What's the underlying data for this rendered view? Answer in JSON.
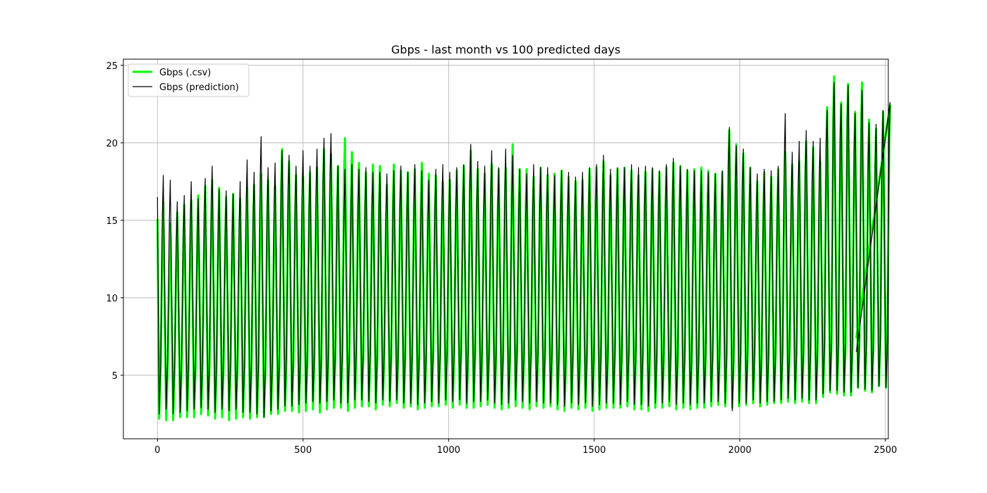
{
  "chart_data": {
    "type": "line",
    "title": "Gbps - last month vs 100 predicted days",
    "xlabel": "",
    "ylabel": "",
    "xlim": [
      -117,
      2510
    ],
    "ylim": [
      0.9,
      25.4
    ],
    "xticks": [
      0,
      500,
      1000,
      1500,
      2000,
      2500
    ],
    "yticks": [
      5,
      10,
      15,
      20,
      25
    ],
    "grid": true,
    "legend_position": "upper-left",
    "period": 24,
    "series": [
      {
        "name": "Gbps (.csv)",
        "color": "#00ff00",
        "style": "thick",
        "x_start": 0,
        "x_end": 2400,
        "start_value": 15.1,
        "end_value": 7.4,
        "daily_peaks": [
          16.2,
          14.8,
          15.5,
          16.0,
          16.3,
          16.6,
          17.2,
          17.6,
          17.1,
          16.5,
          16.7,
          16.4,
          17.1,
          17.3,
          18.0,
          17.6,
          17.2,
          19.6,
          18.8,
          17.9,
          17.8,
          18.1,
          18.4,
          19.6,
          19.3,
          18.5,
          20.3,
          19.4,
          18.7,
          18.1,
          18.6,
          18.5,
          17.3,
          18.6,
          18.2,
          18.1,
          18.3,
          18.7,
          18.0,
          17.9,
          17.5,
          17.6,
          18.2,
          18.5,
          19.5,
          18.3,
          18.0,
          18.6,
          18.3,
          18.4,
          19.9,
          18.3,
          18.3,
          17.8,
          18.4,
          17.9,
          18.0,
          18.2,
          17.8,
          17.5,
          17.6,
          18.3,
          18.4,
          18.8,
          17.9,
          18.3,
          18.4,
          18.2,
          17.9,
          18.1,
          18.3,
          18.1,
          18.4,
          18.7,
          18.5,
          18.2,
          18.3,
          18.4,
          18.2,
          18.0,
          18.1,
          20.8,
          19.9,
          19.3,
          18.4,
          17.5,
          18.1,
          17.8,
          18.3,
          19.4,
          18.6,
          18.8,
          20.1,
          19.7,
          18.8,
          22.3,
          24.3,
          22.6,
          23.8,
          22.0,
          23.9,
          21.5,
          20.9,
          22.0,
          22.4
        ],
        "daily_troughs": [
          2.2,
          2.1,
          2.1,
          2.3,
          2.3,
          2.3,
          2.5,
          2.4,
          2.2,
          2.3,
          2.1,
          2.2,
          2.3,
          2.2,
          2.3,
          2.3,
          2.5,
          2.5,
          2.7,
          2.7,
          2.6,
          2.7,
          2.8,
          2.6,
          2.8,
          2.9,
          2.9,
          2.7,
          2.9,
          3.0,
          3.0,
          2.8,
          3.1,
          3.0,
          3.2,
          2.9,
          3.0,
          2.8,
          2.9,
          3.0,
          3.0,
          3.1,
          2.9,
          3.1,
          2.9,
          2.9,
          3.0,
          3.1,
          2.9,
          2.8,
          2.9,
          3.0,
          2.9,
          2.8,
          3.0,
          2.9,
          3.0,
          2.8,
          2.7,
          2.9,
          2.8,
          2.9,
          2.7,
          2.8,
          2.9,
          2.9,
          2.9,
          3.0,
          2.8,
          2.8,
          2.7,
          2.9,
          2.9,
          3.0,
          2.8,
          2.9,
          2.8,
          2.9,
          2.9,
          3.0,
          3.1,
          3.0,
          2.9,
          3.0,
          3.1,
          3.2,
          3.0,
          3.1,
          3.2,
          3.2,
          3.3,
          3.2,
          3.3,
          3.2,
          3.2,
          3.6,
          3.9,
          3.8,
          3.7,
          3.7,
          4.2,
          4.0,
          3.9,
          4.3,
          4.2
        ]
      },
      {
        "name": "Gbps (prediction)",
        "color": "#000000",
        "style": "thin",
        "x_start": 0,
        "x_end": 2400,
        "start_value": 16.5,
        "end_value": 6.5,
        "daily_peaks": [
          17.9,
          17.6,
          16.2,
          16.6,
          17.5,
          16.4,
          17.7,
          18.5,
          17.0,
          16.9,
          16.7,
          17.5,
          18.9,
          18.1,
          20.4,
          18.4,
          18.7,
          19.5,
          19.2,
          18.5,
          19.5,
          18.5,
          19.6,
          20.3,
          20.6,
          18.5,
          18.3,
          18.6,
          18.3,
          18.4,
          18.1,
          18.1,
          18.0,
          18.2,
          18.5,
          18.1,
          18.6,
          18.2,
          17.6,
          18.3,
          18.6,
          18.1,
          18.4,
          18.6,
          19.9,
          18.8,
          18.5,
          19.5,
          18.4,
          19.6,
          19.2,
          18.3,
          18.0,
          18.6,
          18.4,
          18.4,
          17.9,
          18.2,
          18.1,
          17.8,
          18.1,
          18.4,
          18.6,
          19.2,
          18.3,
          18.4,
          18.4,
          18.6,
          18.4,
          18.5,
          18.4,
          18.2,
          18.6,
          19.0,
          18.5,
          18.3,
          18.2,
          18.2,
          18.1,
          18.0,
          18.2,
          21.0,
          19.8,
          19.6,
          18.4,
          18.0,
          18.3,
          18.2,
          18.5,
          21.9,
          19.4,
          20.1,
          20.8,
          20.1,
          20.3,
          22.1,
          23.9,
          22.5,
          23.7,
          21.9,
          23.4,
          21.3,
          21.2,
          22.1,
          22.6
        ],
        "daily_troughs": [
          2.5,
          2.8,
          2.5,
          2.6,
          2.7,
          2.8,
          2.9,
          2.8,
          2.6,
          2.8,
          2.7,
          2.8,
          2.6,
          2.6,
          2.5,
          2.3,
          2.7,
          2.8,
          3.0,
          3.0,
          3.1,
          3.2,
          3.3,
          3.2,
          3.3,
          3.4,
          3.2,
          3.2,
          3.4,
          3.4,
          3.3,
          3.2,
          3.4,
          3.3,
          3.4,
          3.2,
          3.2,
          3.1,
          3.2,
          3.3,
          3.2,
          3.4,
          3.3,
          3.4,
          3.2,
          3.3,
          3.3,
          3.4,
          3.2,
          3.1,
          3.2,
          3.4,
          3.3,
          3.2,
          3.3,
          3.2,
          3.2,
          3.1,
          3.0,
          3.2,
          3.1,
          3.2,
          3.0,
          3.1,
          3.2,
          3.2,
          3.1,
          3.3,
          3.1,
          3.1,
          3.0,
          3.2,
          3.2,
          3.3,
          3.1,
          3.2,
          3.1,
          3.2,
          3.2,
          3.3,
          3.3,
          3.2,
          2.7,
          3.2,
          3.2,
          3.4,
          3.2,
          3.3,
          3.3,
          3.4,
          3.5,
          3.4,
          3.5,
          3.4,
          3.4,
          3.8,
          4.0,
          4.0,
          3.9,
          3.9,
          4.2,
          4.1,
          4.0,
          4.3,
          4.2
        ]
      }
    ]
  }
}
